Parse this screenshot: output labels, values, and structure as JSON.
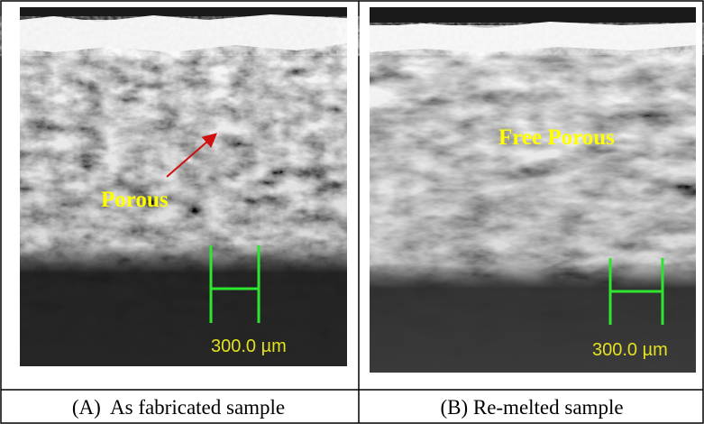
{
  "panels": [
    {
      "annotation": "Porous",
      "scale_bar": "300.0 µm",
      "caption": "(A)  As fabricated sample"
    },
    {
      "annotation": "Free Porous",
      "scale_bar": "300.0 µm",
      "caption": "(B) Re-melted sample"
    }
  ]
}
